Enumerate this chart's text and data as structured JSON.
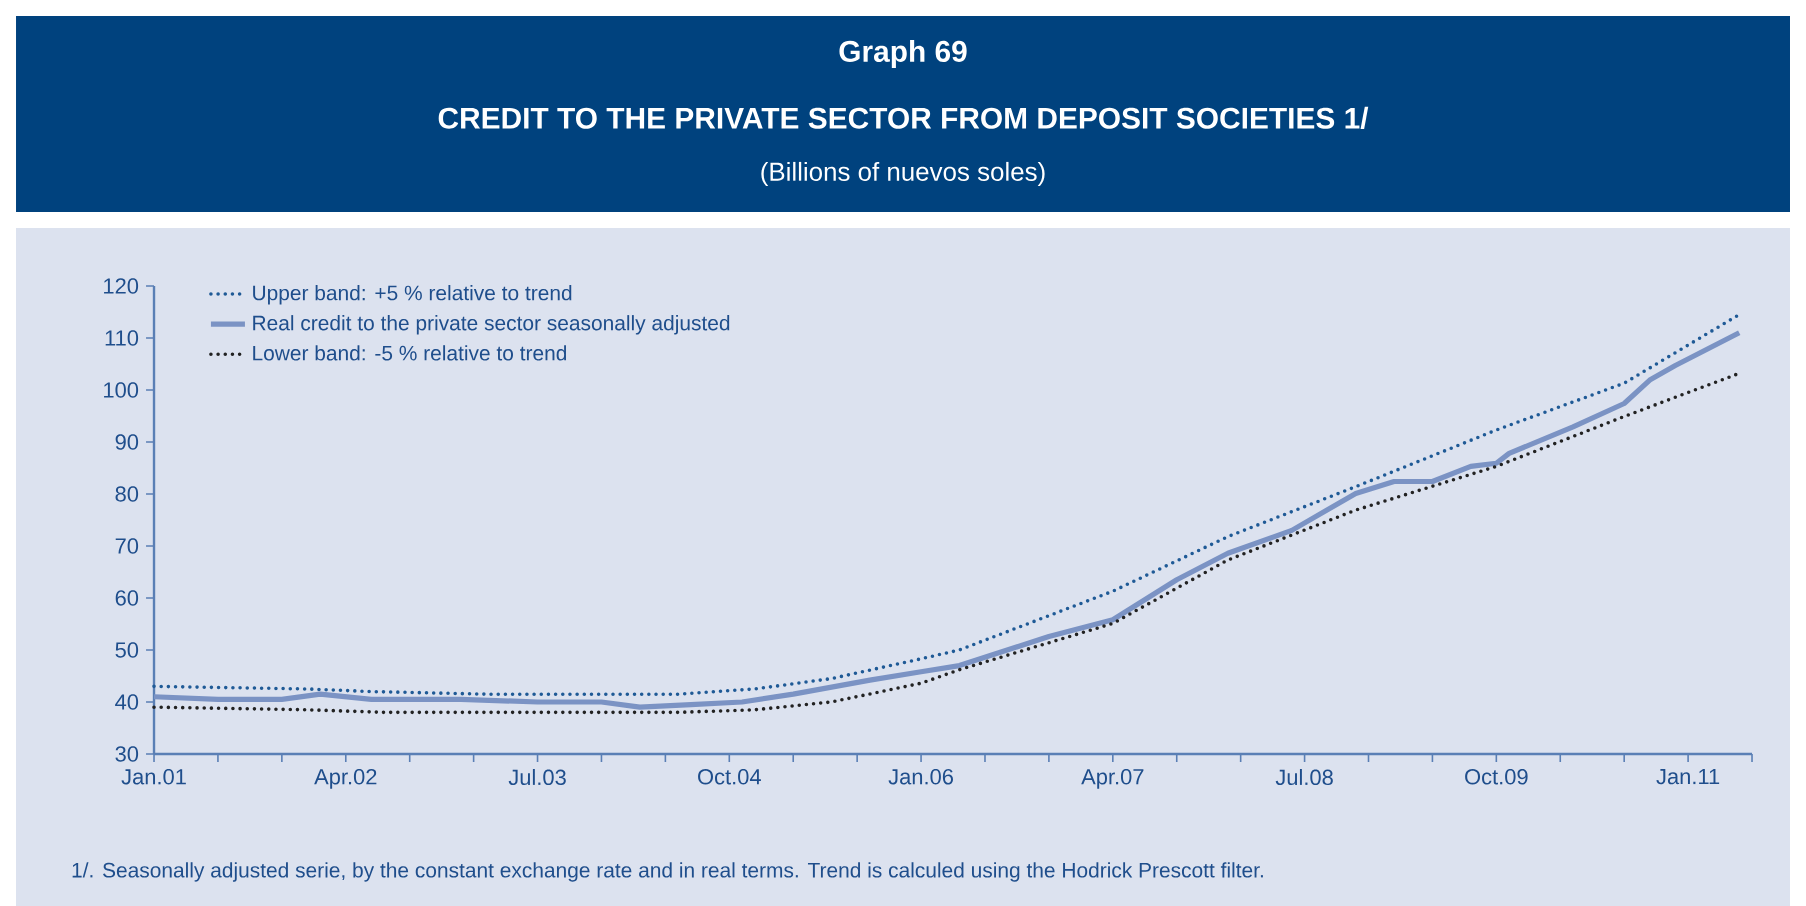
{
  "chart_data": {
    "type": "line",
    "title": "Graph 69",
    "subtitle": "CREDIT TO THE PRIVATE SECTOR FROM DEPOSIT SOCIETIES 1/",
    "annotations": [
      "(Billions of nuevos soles)",
      "1/. Seasonally adjusted serie, by the constant exchange rate and in real terms. Trend is calculed using the Hodrick Prescott filter."
    ],
    "legend": "top left",
    "grid": false,
    "xlim": [
      "2001-01",
      "2011-06"
    ],
    "ylim": [
      30,
      120
    ],
    "yticks": [
      30,
      40,
      50,
      60,
      70,
      80,
      90,
      100,
      110,
      120
    ],
    "xticks": [
      {
        "value": "2001-01",
        "label": "Jan.01"
      },
      {
        "value": "2001-06",
        "label": null
      },
      {
        "value": "2001-11",
        "label": null
      },
      {
        "value": "2002-04",
        "label": "Apr.02"
      },
      {
        "value": "2002-09",
        "label": null
      },
      {
        "value": "2003-02",
        "label": null
      },
      {
        "value": "2003-07",
        "label": "Jul.03"
      },
      {
        "value": "2003-12",
        "label": null
      },
      {
        "value": "2004-05",
        "label": null
      },
      {
        "value": "2004-10",
        "label": "Oct.04"
      },
      {
        "value": "2005-03",
        "label": null
      },
      {
        "value": "2005-08",
        "label": null
      },
      {
        "value": "2006-01",
        "label": "Jan.06"
      },
      {
        "value": "2006-06",
        "label": null
      },
      {
        "value": "2006-11",
        "label": null
      },
      {
        "value": "2007-04",
        "label": "Apr.07"
      },
      {
        "value": "2007-09",
        "label": null
      },
      {
        "value": "2008-02",
        "label": null
      },
      {
        "value": "2008-07",
        "label": "Jul.08"
      },
      {
        "value": "2008-12",
        "label": null
      },
      {
        "value": "2009-05",
        "label": null
      },
      {
        "value": "2009-10",
        "label": "Oct.09"
      },
      {
        "value": "2010-03",
        "label": null
      },
      {
        "value": "2010-08",
        "label": null
      },
      {
        "value": "2011-01",
        "label": "Jan.11"
      },
      {
        "value": "2011-06",
        "label": null
      }
    ],
    "series": [
      {
        "name": "Upper band: +5 % relative to trend",
        "color": "#1f5a96",
        "line_style": "dotted",
        "x": [
          "2001-01",
          "2002-01",
          "2002-06",
          "2003-03",
          "2004-06",
          "2004-12",
          "2005-06",
          "2006-01",
          "2006-04",
          "2007-04",
          "2008-01",
          "2008-11",
          "2009-10",
          "2010-08",
          "2011-05"
        ],
        "values": [
          43,
          42.5,
          42,
          41.5,
          41.5,
          42.5,
          44.5,
          48.3,
          50,
          61.3,
          71.8,
          81.4,
          92.3,
          101.3,
          114.5
        ]
      },
      {
        "name": "Real credit to the private sector seasonally adjusted",
        "color": "#7b93c4",
        "line_style": "solid",
        "x": [
          "2001-01",
          "2001-06",
          "2001-11",
          "2002-02",
          "2002-06",
          "2003-01",
          "2003-07",
          "2003-12",
          "2004-03",
          "2004-07",
          "2004-11",
          "2005-03",
          "2005-09",
          "2006-01",
          "2006-04",
          "2006-11",
          "2007-04",
          "2007-09",
          "2008-01",
          "2008-06",
          "2008-11",
          "2009-02",
          "2009-05",
          "2009-08",
          "2009-10",
          "2009-11",
          "2010-04",
          "2010-08",
          "2010-10",
          "2010-12",
          "2011-05"
        ],
        "values": [
          41,
          40.5,
          40.5,
          41.5,
          40.5,
          40.5,
          40,
          40,
          39,
          39.5,
          40,
          41.5,
          44.2,
          45.8,
          47,
          52.6,
          55.8,
          63.5,
          68.6,
          73,
          80.1,
          82.4,
          82.4,
          85.3,
          85.9,
          87.8,
          92.9,
          97.4,
          101.9,
          104.7,
          111
        ]
      },
      {
        "name": "Lower band: -5 % relative to trend",
        "color": "#222222",
        "line_style": "dotted",
        "x": [
          "2001-01",
          "2002-01",
          "2002-07",
          "2004-06",
          "2004-12",
          "2005-06",
          "2006-01",
          "2006-04",
          "2007-04",
          "2008-01",
          "2008-11",
          "2009-10",
          "2010-08",
          "2011-05"
        ],
        "values": [
          39,
          38.5,
          38,
          38,
          38.5,
          40,
          43.6,
          46.2,
          55.1,
          67.3,
          76.9,
          85.3,
          94.9,
          103.2
        ]
      }
    ]
  }
}
